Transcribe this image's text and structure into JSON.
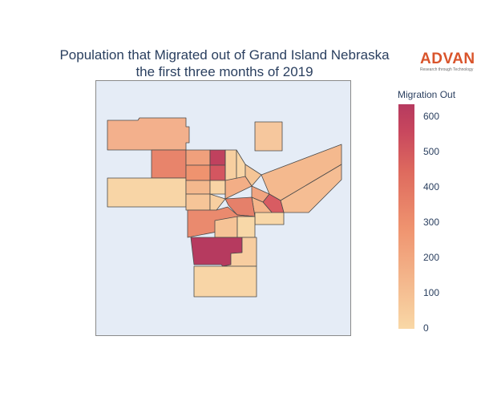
{
  "title": {
    "line1": "Population that Migrated out of Grand Island Nebraska",
    "line2": "the first three months of 2019"
  },
  "logo": {
    "name": "ADVAN",
    "tagline": "Research through Technology"
  },
  "legend": {
    "title": "Migration Out",
    "ticks": [
      "600",
      "500",
      "400",
      "300",
      "200",
      "100",
      "0"
    ],
    "range": [
      0,
      630
    ],
    "colorscale": [
      "#f9d8a6",
      "#f4b98e",
      "#ef936f",
      "#de6a5e",
      "#c8475e",
      "#b63a5f"
    ]
  },
  "colors": {
    "background": "#e5ecf6",
    "border": "#4a4a4a"
  }
}
